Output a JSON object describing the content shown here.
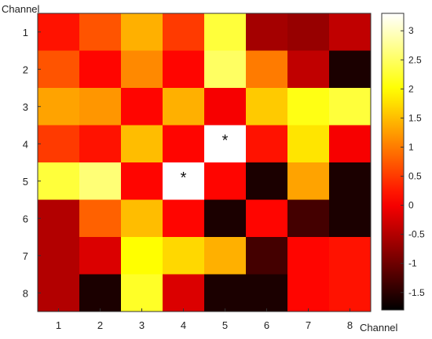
{
  "chart_data": {
    "type": "heatmap",
    "ylabel": "Channel",
    "xlabel": "Channel",
    "x_categories": [
      "1",
      "2",
      "3",
      "4",
      "5",
      "6",
      "7",
      "8"
    ],
    "y_categories": [
      "1",
      "2",
      "3",
      "4",
      "5",
      "6",
      "7",
      "8"
    ],
    "values": [
      [
        0.2,
        0.7,
        1.4,
        0.5,
        2.3,
        -0.6,
        -0.7,
        -0.4
      ],
      [
        0.7,
        0.1,
        1.1,
        0.1,
        2.5,
        1.0,
        -0.4,
        -1.6
      ],
      [
        1.3,
        1.2,
        0.1,
        1.4,
        0.0,
        1.6,
        2.1,
        2.3
      ],
      [
        0.5,
        0.2,
        1.5,
        0.1,
        3.3,
        0.2,
        1.8,
        0.0
      ],
      [
        2.3,
        2.6,
        0.1,
        3.3,
        0.1,
        -1.6,
        1.3,
        -1.6
      ],
      [
        -0.5,
        0.8,
        1.5,
        0.1,
        -1.6,
        0.1,
        -1.3,
        -1.6
      ],
      [
        -0.5,
        -0.2,
        2.0,
        1.7,
        1.4,
        -1.3,
        0.1,
        0.2
      ],
      [
        -0.5,
        -1.6,
        2.2,
        -0.2,
        -1.6,
        -1.6,
        0.1,
        0.2
      ]
    ],
    "markers": [
      {
        "row": 4,
        "col": 5,
        "symbol": "*"
      },
      {
        "row": 5,
        "col": 4,
        "symbol": "*"
      }
    ],
    "colormap": "hot",
    "clim": [
      -1.8,
      3.3
    ],
    "colorbar_ticks": [
      "3",
      "2.5",
      "2",
      "1.5",
      "1",
      "0.5",
      "0",
      "-0.5",
      "-1",
      "-1.5"
    ],
    "colorbar_tick_values": [
      3,
      2.5,
      2,
      1.5,
      1,
      0.5,
      0,
      -0.5,
      -1,
      -1.5
    ],
    "legend": "colorbar-right",
    "grid": false
  }
}
